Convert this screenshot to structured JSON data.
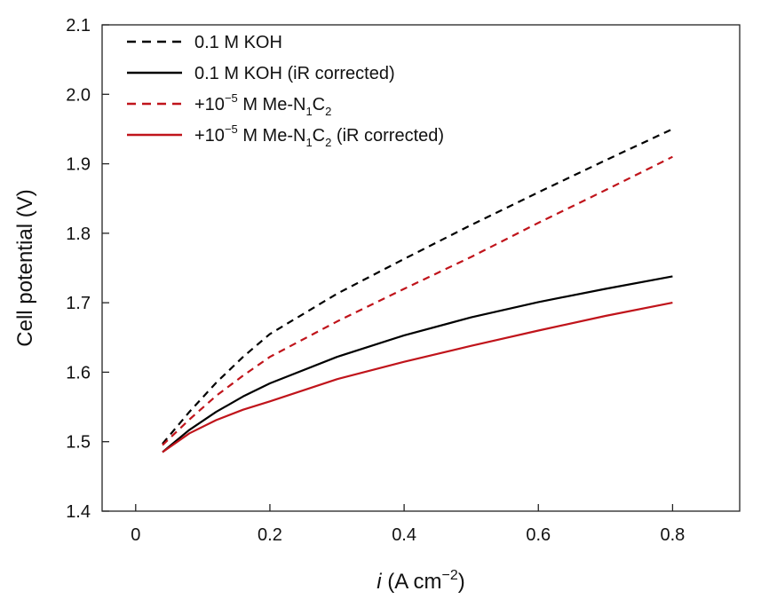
{
  "chart_data": {
    "type": "line",
    "xlabel": {
      "italic": "i",
      "rest": " (A cm",
      "sup": "−2",
      "close": ")"
    },
    "ylabel": "Cell potential (V)",
    "xlim": [
      -0.05,
      0.9
    ],
    "ylim": [
      1.4,
      2.1
    ],
    "xticks": [
      0,
      0.2,
      0.4,
      0.6,
      0.8
    ],
    "xtick_labels": [
      "0",
      "0.2",
      "0.4",
      "0.6",
      "0.8"
    ],
    "yticks": [
      1.4,
      1.5,
      1.6,
      1.7,
      1.8,
      1.9,
      2.0,
      2.1
    ],
    "ytick_labels": [
      "1.4",
      "1.5",
      "1.6",
      "1.7",
      "1.8",
      "1.9",
      "2.0",
      "2.1"
    ],
    "grid": false,
    "legend_position": "top-left",
    "series": [
      {
        "name": "0.1 M KOH",
        "legend_parts": [
          {
            "t": "0.1 M KOH"
          }
        ],
        "color": "#000000",
        "style": "dashed",
        "x": [
          0.04,
          0.08,
          0.12,
          0.16,
          0.2,
          0.3,
          0.4,
          0.5,
          0.6,
          0.7,
          0.8
        ],
        "y": [
          1.497,
          1.543,
          1.585,
          1.622,
          1.655,
          1.713,
          1.763,
          1.812,
          1.859,
          1.905,
          1.95
        ]
      },
      {
        "name": "0.1 M KOH (iR corrected)",
        "legend_parts": [
          {
            "t": "0.1 M KOH (iR corrected)"
          }
        ],
        "color": "#000000",
        "style": "solid",
        "x": [
          0.04,
          0.08,
          0.12,
          0.16,
          0.2,
          0.3,
          0.4,
          0.5,
          0.6,
          0.7,
          0.8
        ],
        "y": [
          1.485,
          1.517,
          1.543,
          1.565,
          1.584,
          1.622,
          1.653,
          1.679,
          1.701,
          1.72,
          1.738
        ]
      },
      {
        "name": "+10−5 M Me-N1C2",
        "legend_parts": [
          {
            "t": "+10"
          },
          {
            "t": "−5",
            "sup": true
          },
          {
            "t": " M Me-N"
          },
          {
            "t": "1",
            "sub": true
          },
          {
            "t": "C"
          },
          {
            "t": "2",
            "sub": true
          }
        ],
        "color": "#c0141b",
        "style": "dashed",
        "x": [
          0.04,
          0.08,
          0.12,
          0.16,
          0.2,
          0.3,
          0.4,
          0.5,
          0.6,
          0.7,
          0.8
        ],
        "y": [
          1.495,
          1.532,
          1.566,
          1.595,
          1.622,
          1.673,
          1.72,
          1.766,
          1.815,
          1.862,
          1.91
        ]
      },
      {
        "name": "+10−5 M Me-N1C2 (iR corrected)",
        "legend_parts": [
          {
            "t": "+10"
          },
          {
            "t": "−5",
            "sup": true
          },
          {
            "t": " M Me-N"
          },
          {
            "t": "1",
            "sub": true
          },
          {
            "t": "C"
          },
          {
            "t": "2",
            "sub": true
          },
          {
            "t": " (iR corrected)"
          }
        ],
        "color": "#c0141b",
        "style": "solid",
        "x": [
          0.04,
          0.08,
          0.12,
          0.16,
          0.2,
          0.3,
          0.4,
          0.5,
          0.6,
          0.7,
          0.8
        ],
        "y": [
          1.485,
          1.512,
          1.531,
          1.546,
          1.558,
          1.59,
          1.615,
          1.638,
          1.66,
          1.681,
          1.7
        ]
      }
    ]
  }
}
